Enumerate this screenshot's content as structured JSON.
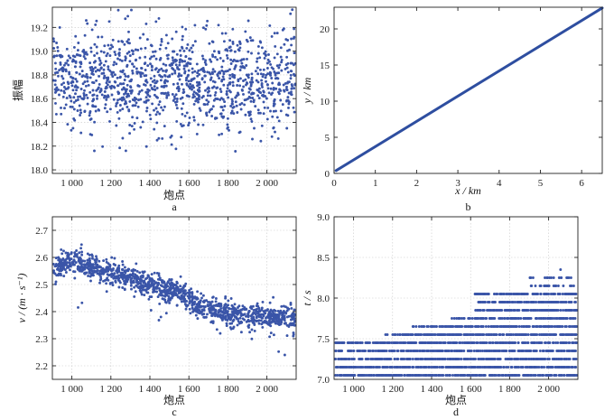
{
  "chart_data": [
    {
      "id": "a",
      "type": "scatter",
      "panel_label": "a",
      "xlabel": "炮点",
      "ylabel": "振幅",
      "xlim": [
        900,
        2150
      ],
      "ylim": [
        17.97,
        19.37
      ],
      "xticks": [
        1000,
        1200,
        1400,
        1600,
        1800,
        2000
      ],
      "xtick_labels": [
        "1 000",
        "1 200",
        "1 400",
        "1 600",
        "1 800",
        "2 000"
      ],
      "yticks": [
        18.0,
        18.2,
        18.4,
        18.6,
        18.8,
        19.0,
        19.2
      ],
      "ytick_labels": [
        "18.0",
        "18.2",
        "18.4",
        "18.6",
        "18.8",
        "19.0",
        "19.2"
      ],
      "grid": true,
      "point_color": "#3a55a8",
      "points_description": "about 1250 shot points, amplitude scattered mostly between 18.4 and 19.1 with mean near 18.75",
      "generator": {
        "n": 1250,
        "x_start": 900,
        "x_end": 2150,
        "mean": 18.75,
        "spread": 0.2,
        "y_min": 18.15,
        "y_max": 19.36
      }
    },
    {
      "id": "b",
      "type": "line",
      "panel_label": "b",
      "xlabel": "x / km",
      "xlabel_var": "x",
      "xlabel_unit": " / km",
      "ylabel": "y / km",
      "ylabel_var": "y",
      "ylabel_unit": " / km",
      "xlim": [
        0,
        6.5
      ],
      "ylim": [
        0,
        23
      ],
      "xticks": [
        0,
        1,
        2,
        3,
        4,
        5,
        6
      ],
      "xtick_labels": [
        "0",
        "1",
        "2",
        "3",
        "4",
        "5",
        "6"
      ],
      "yticks": [
        0,
        5,
        10,
        15,
        20
      ],
      "ytick_labels": [
        "0",
        "5",
        "10",
        "15",
        "20"
      ],
      "grid": false,
      "line_color": "#2e4ea0",
      "x": [
        0.05,
        6.5
      ],
      "y": [
        0.4,
        22.9
      ]
    },
    {
      "id": "c",
      "type": "scatter",
      "panel_label": "c",
      "xlabel": "炮点",
      "ylabel": "v / (m · s⁻¹)",
      "ylabel_var": "v",
      "ylabel_unit": " / (m · s⁻¹)",
      "xlim": [
        900,
        2150
      ],
      "ylim": [
        2.15,
        2.75
      ],
      "xticks": [
        1000,
        1200,
        1400,
        1600,
        1800,
        2000
      ],
      "xtick_labels": [
        "1 000",
        "1 200",
        "1 400",
        "1 600",
        "1 800",
        "2 000"
      ],
      "yticks": [
        2.2,
        2.3,
        2.4,
        2.5,
        2.6,
        2.7
      ],
      "ytick_labels": [
        "2.2",
        "2.3",
        "2.4",
        "2.5",
        "2.6",
        "2.7"
      ],
      "grid": true,
      "point_color": "#3a55a8",
      "trend": {
        "x": [
          900,
          1000,
          1200,
          1400,
          1550,
          1650,
          1800,
          2000,
          2150
        ],
        "y": [
          2.56,
          2.585,
          2.545,
          2.5,
          2.47,
          2.42,
          2.39,
          2.38,
          2.37
        ]
      },
      "generator": {
        "n": 1300,
        "x_start": 900,
        "x_end": 2150,
        "spread": 0.022,
        "y_min": 2.24,
        "y_max": 2.65
      }
    },
    {
      "id": "d",
      "type": "scatter",
      "panel_label": "d",
      "xlabel": "炮点",
      "ylabel": "t / s",
      "ylabel_var": "t",
      "ylabel_unit": " / s",
      "xlim": [
        900,
        2150
      ],
      "ylim": [
        7.0,
        9.0
      ],
      "xticks": [
        1000,
        1200,
        1400,
        1600,
        1800,
        2000
      ],
      "xtick_labels": [
        "1 000",
        "1 200",
        "1 400",
        "1 600",
        "1 800",
        "2 000"
      ],
      "yticks": [
        7.0,
        7.5,
        8.0,
        8.5,
        9.0
      ],
      "ytick_labels": [
        "7.0",
        "7.5",
        "8.0",
        "8.5",
        "9.0"
      ],
      "grid": true,
      "point_color": "#3a55a8",
      "quantized_levels": {
        "x_from_900": [
          7.05,
          7.15,
          7.25,
          7.35,
          7.45
        ],
        "x_from_1200": [
          7.55
        ],
        "x_from_1300": [
          7.65
        ],
        "x_from_1500": [
          7.75
        ],
        "x_from_1620": [
          7.85,
          7.95,
          8.05
        ],
        "x_from_1900": [
          8.15,
          8.25
        ],
        "x_from_2030": [
          8.35
        ]
      },
      "generator": {
        "n": 1400,
        "x_start": 900,
        "x_end": 2150,
        "step": 0.1
      }
    }
  ]
}
